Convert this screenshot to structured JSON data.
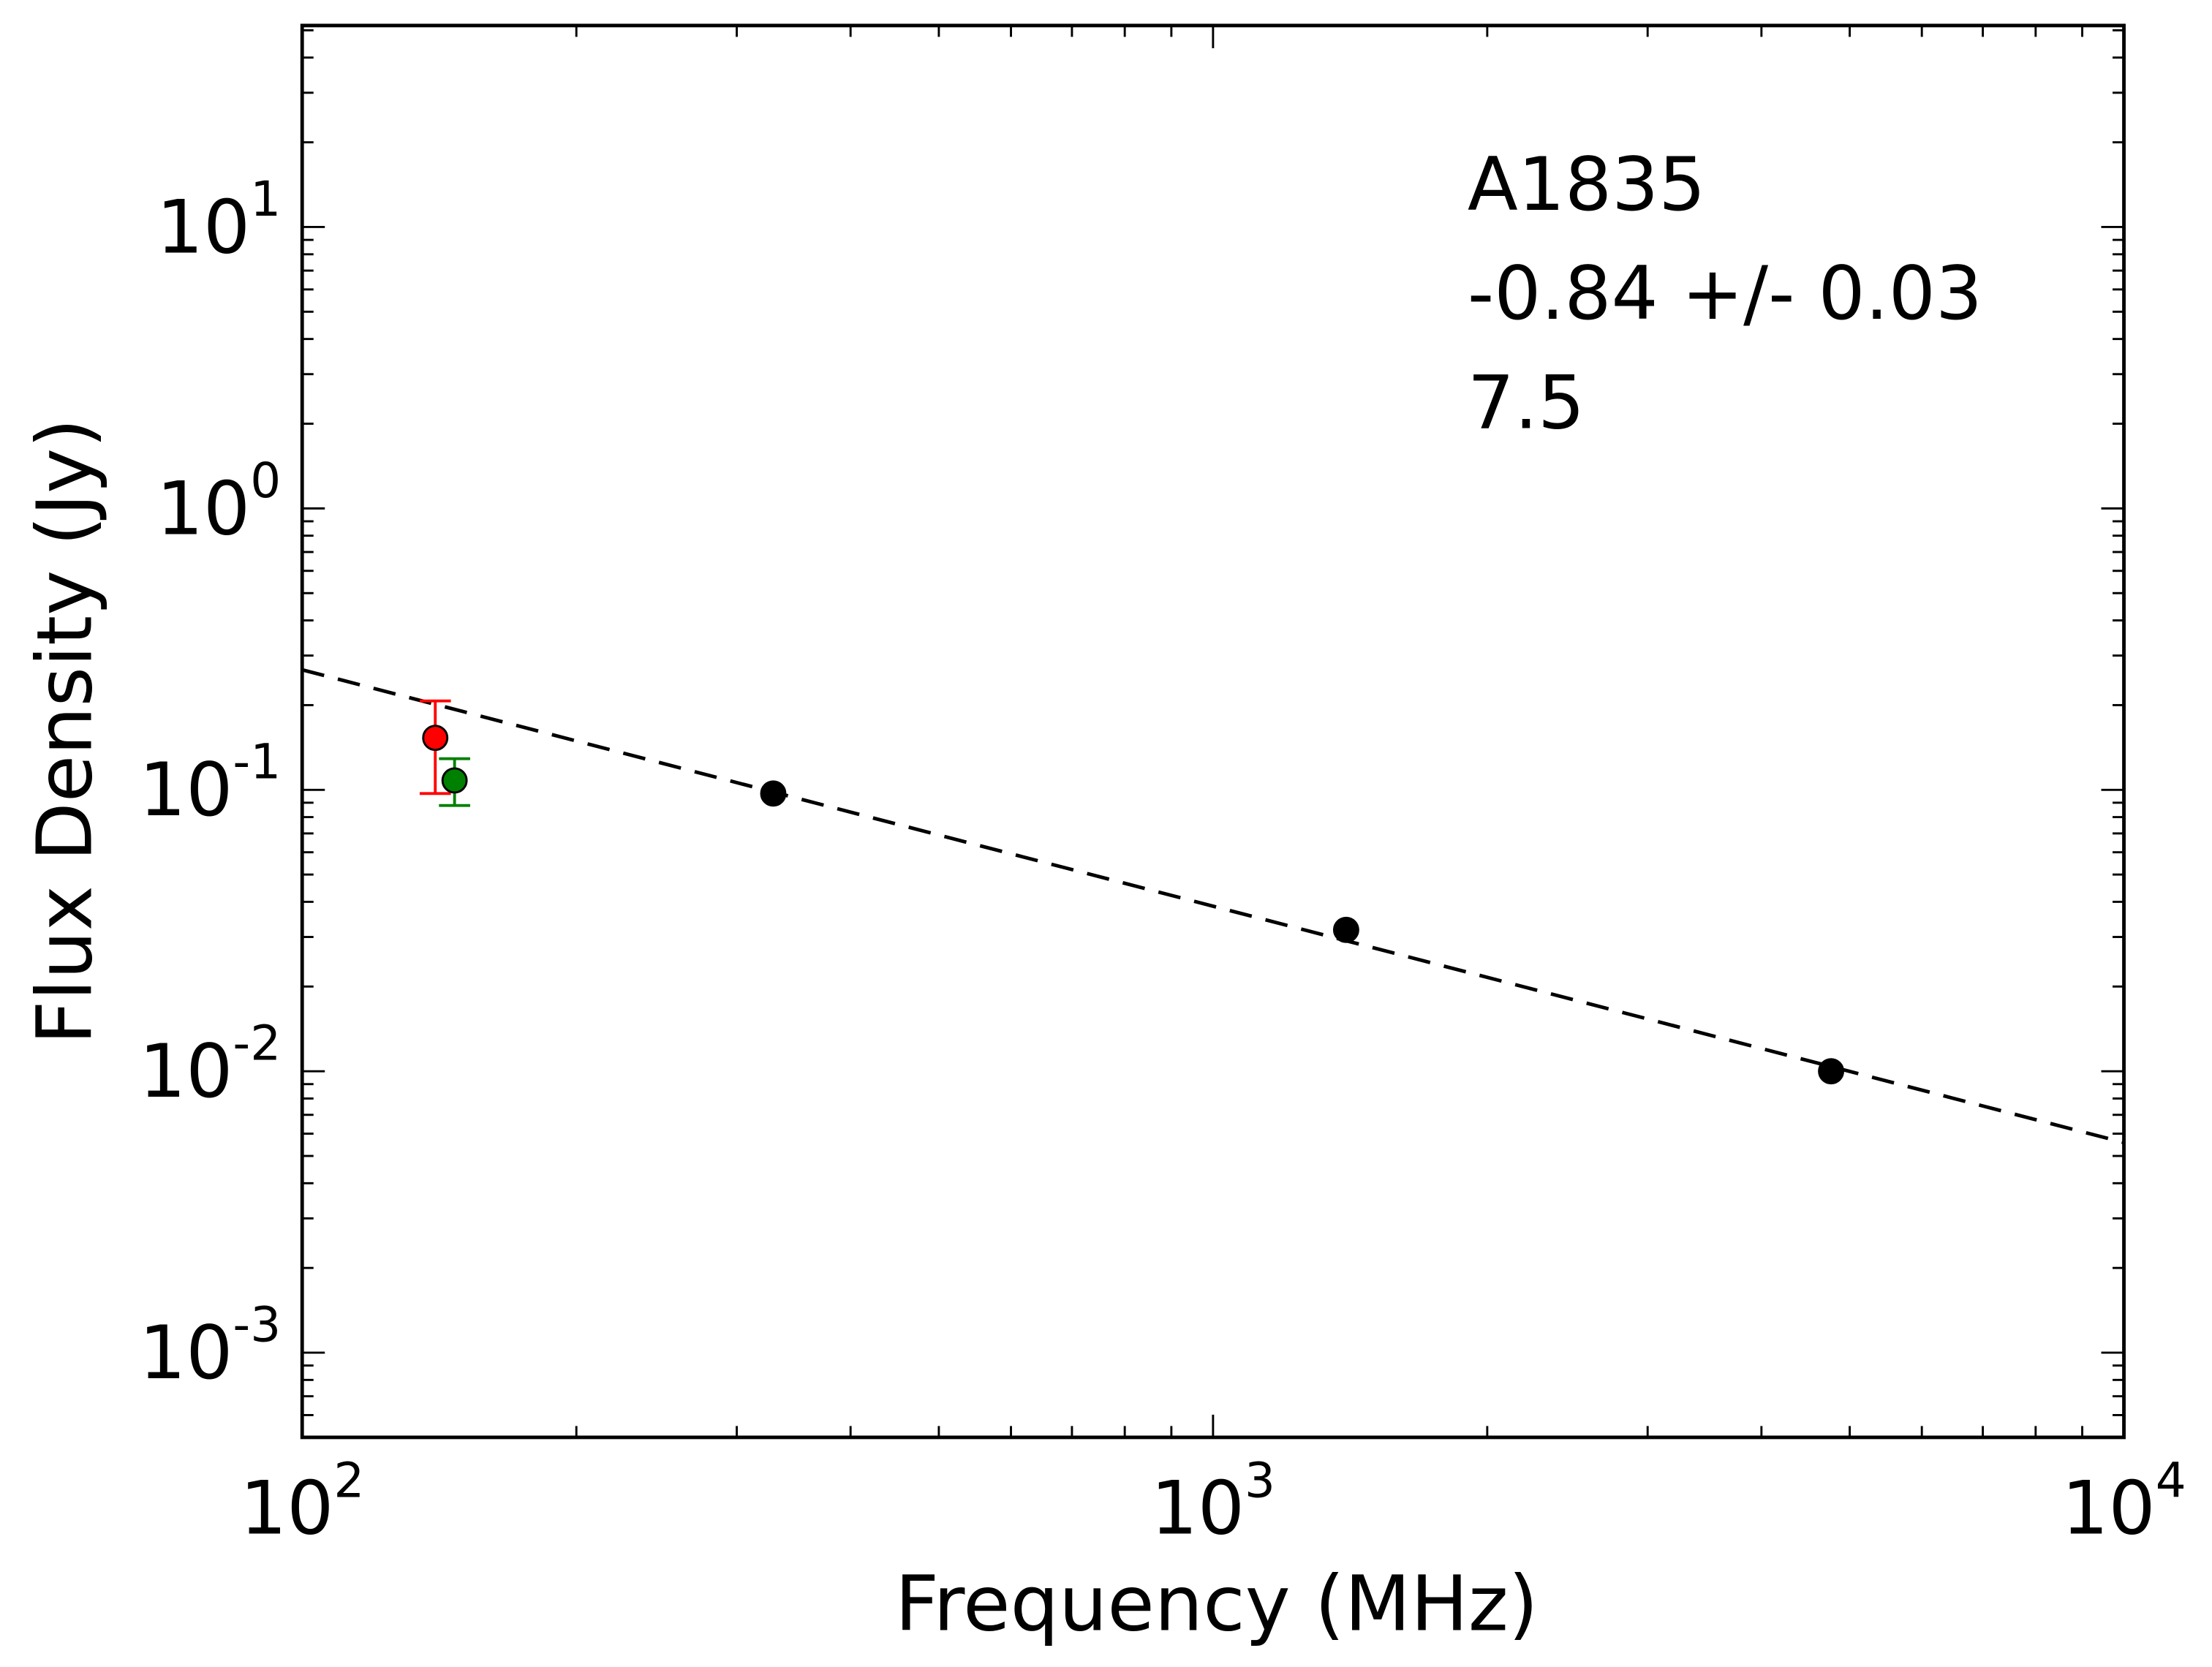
{
  "chart_data": {
    "type": "scatter",
    "title": "",
    "xlabel": "Frequency (MHz)",
    "ylabel": "Flux Density (Jy)",
    "xscale": "log",
    "yscale": "log",
    "xlim": [
      100,
      10000
    ],
    "ylim": [
      0.0005,
      52
    ],
    "x_ticks": [
      {
        "base": "10",
        "exp": "2",
        "value": 100
      },
      {
        "base": "10",
        "exp": "3",
        "value": 1000
      },
      {
        "base": "10",
        "exp": "4",
        "value": 10000
      }
    ],
    "y_ticks": [
      {
        "base": "10",
        "exp": "1",
        "value": 10
      },
      {
        "base": "10",
        "exp": "0",
        "value": 1
      },
      {
        "base": "10",
        "exp": "-1",
        "value": 0.1
      },
      {
        "base": "10",
        "exp": "-2",
        "value": 0.01
      },
      {
        "base": "10",
        "exp": "-3",
        "value": 0.001
      }
    ],
    "grid": false,
    "annotations": [
      "A1835",
      "-0.84 +/- 0.03",
      "7.5"
    ],
    "series": [
      {
        "name": "red",
        "color": "#ff0000",
        "points": [
          {
            "x": 140,
            "y": 0.153,
            "ylo": 0.097,
            "yhi": 0.207
          }
        ]
      },
      {
        "name": "green",
        "color": "#008000",
        "points": [
          {
            "x": 147,
            "y": 0.108,
            "ylo": 0.088,
            "yhi": 0.129
          }
        ]
      },
      {
        "name": "black",
        "color": "#000000",
        "points": [
          {
            "x": 329,
            "y": 0.097
          },
          {
            "x": 1400,
            "y": 0.0318
          },
          {
            "x": 4770,
            "y": 0.01
          }
        ]
      }
    ],
    "fit": {
      "style": "dashed",
      "color": "#000000",
      "slope": -0.84,
      "x0": 100,
      "y0": 0.267
    }
  }
}
